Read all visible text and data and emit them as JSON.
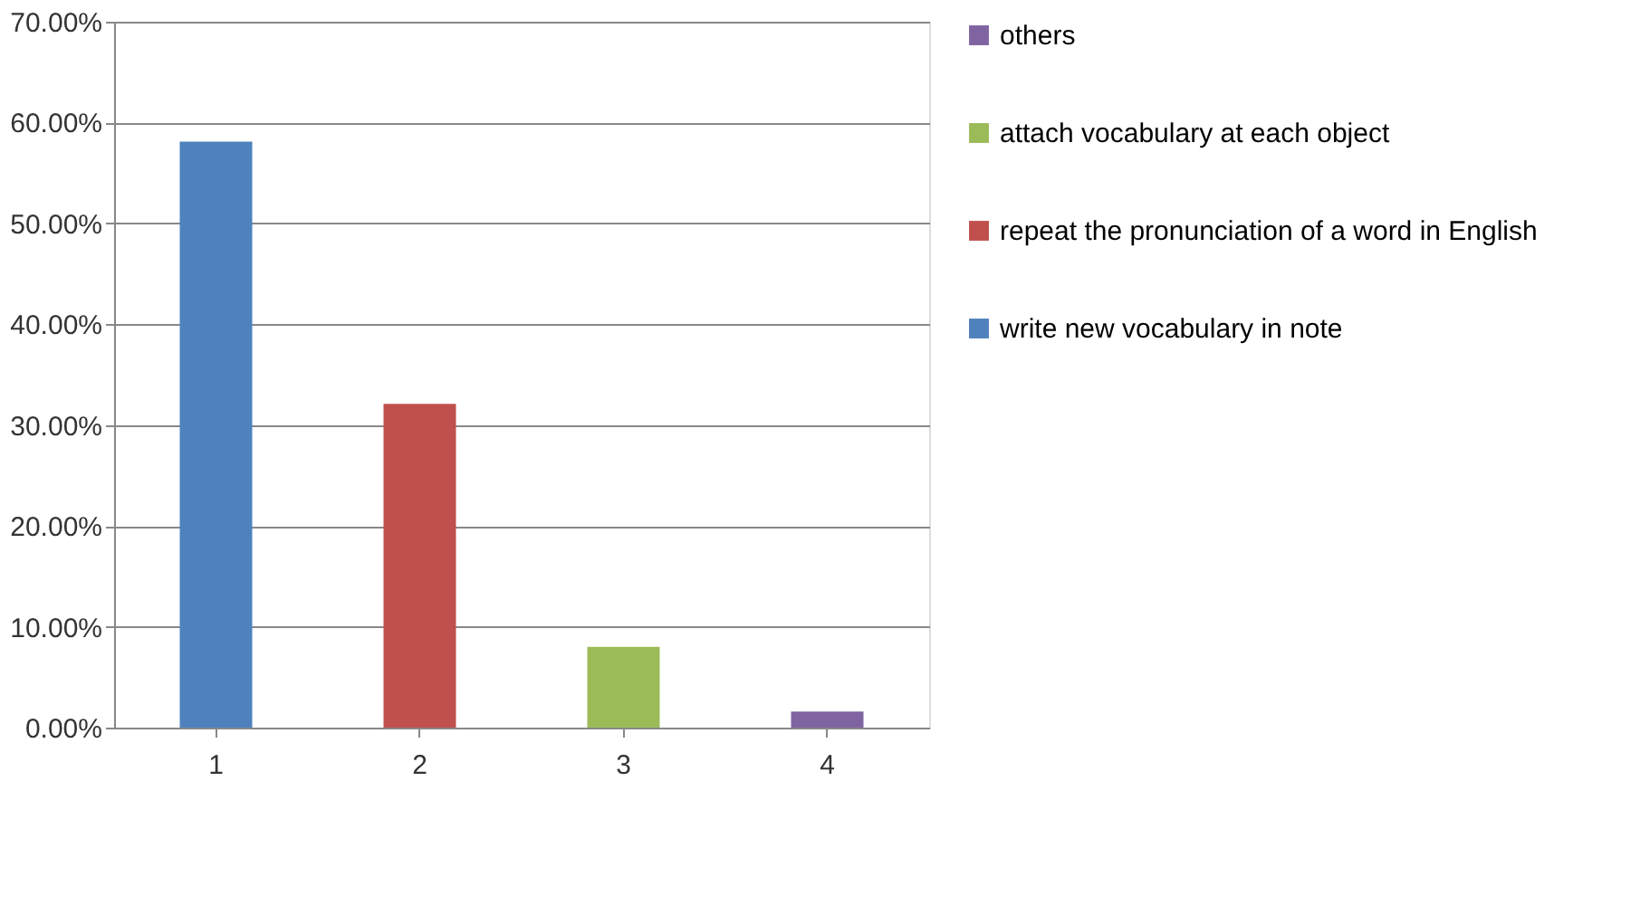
{
  "chart_data": {
    "type": "bar",
    "categories": [
      "1",
      "2",
      "3",
      "4"
    ],
    "series": [
      {
        "name": "write new vocabulary in note",
        "color": "#4f81bd",
        "values": [
          58.1,
          null,
          null,
          null
        ]
      },
      {
        "name": "repeat the pronunciation of a word in English",
        "color": "#c0504d",
        "values": [
          null,
          32.1,
          null,
          null
        ]
      },
      {
        "name": "attach vocabulary at each object",
        "color": "#9bbb59",
        "values": [
          null,
          null,
          8.0,
          null
        ]
      },
      {
        "name": "others",
        "color": "#8064a2",
        "values": [
          null,
          null,
          null,
          1.6
        ]
      }
    ],
    "ylim": [
      0,
      70
    ],
    "yticks": [
      {
        "value": 0,
        "label": "0.00%"
      },
      {
        "value": 10,
        "label": "10.00%"
      },
      {
        "value": 20,
        "label": "20.00%"
      },
      {
        "value": 30,
        "label": "30.00%"
      },
      {
        "value": 40,
        "label": "40.00%"
      },
      {
        "value": 50,
        "label": "50.00%"
      },
      {
        "value": 60,
        "label": "60.00%"
      },
      {
        "value": 70,
        "label": "70.00%"
      }
    ],
    "grid": "y",
    "legend": "right"
  }
}
